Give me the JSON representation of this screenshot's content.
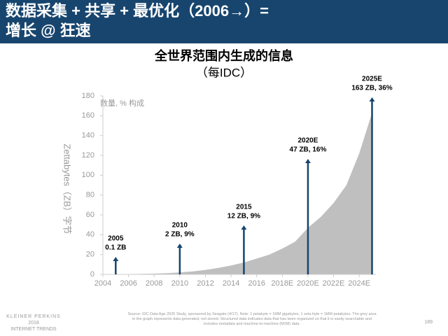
{
  "header": {
    "title_lines": [
      "数据采集 + 共享 + 最优化（2006→）=",
      "增长 @ 狂速"
    ]
  },
  "chart_data": {
    "type": "area",
    "title": "全世界范围内生成的信息",
    "subtitle": "（每IDC）",
    "y_label": "Zettabytes（ZB）字节",
    "unit_label": "数量, % 构成",
    "color": "#bfbfbf",
    "x": [
      2005,
      2006,
      2007,
      2008,
      2009,
      2010,
      2011,
      2012,
      2013,
      2014,
      2015,
      2016,
      2017,
      2018,
      2019,
      2020,
      2021,
      2022,
      2023,
      2024,
      2025
    ],
    "values": [
      0.1,
      0.3,
      0.5,
      0.8,
      1.2,
      2,
      3,
      4.5,
      6.5,
      9,
      12,
      16,
      20,
      26,
      33,
      47,
      58,
      72,
      90,
      122,
      163
    ],
    "xlim": [
      2004,
      2025.3
    ],
    "xticks": [
      2004,
      2006,
      2008,
      2010,
      2012,
      2014,
      2016,
      {
        "value": 2018,
        "label": "2018E"
      },
      {
        "value": 2020,
        "label": "2020E"
      },
      {
        "value": 2022,
        "label": "2022E"
      },
      {
        "value": 2024,
        "label": "2024E"
      }
    ],
    "ylim": [
      0,
      180
    ],
    "yticks": [
      0,
      20,
      40,
      60,
      80,
      100,
      120,
      140,
      160,
      180
    ],
    "annotations": [
      {
        "x": 2005,
        "label": "2005",
        "text": "0.1 ZB"
      },
      {
        "x": 2010,
        "label": "2010",
        "text": "2 ZB, 9%"
      },
      {
        "x": 2015,
        "label": "2015",
        "text": "12 ZB, 9%"
      },
      {
        "x": 2020,
        "label": "2020E",
        "text": "47 ZB, 16%"
      },
      {
        "x": 2025,
        "label": "2025E",
        "text": "163 ZB, 36%"
      }
    ]
  },
  "footer": {
    "brand_lines": [
      "KLEINER PERKINS",
      "2018",
      "INTERNET TRENDS"
    ],
    "source": "Source: IDC Data Age 2025 Study, sponsored by Seagate (4/17). Note: 1 petabyte = 1MM gigabytes, 1 zeta byte = 1MM petabytes. The grey area in the graph represents data generated, not stored. Structured data indicates data that has been organized so that it is easily searchable and includes metadata and machine-to-machine (M2M) data.",
    "page": "189"
  }
}
